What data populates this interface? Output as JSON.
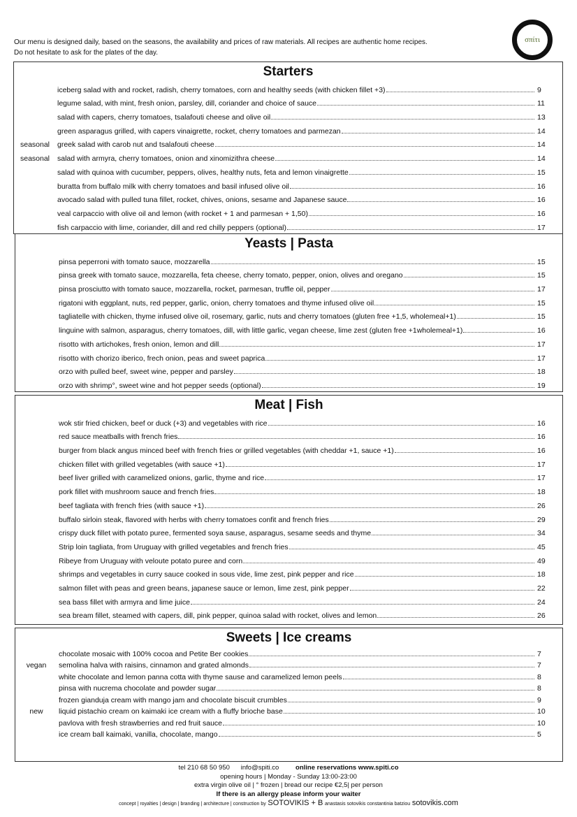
{
  "intro": [
    "Our menu is designed daily, based on the seasons, the availability and prices of raw materials. All recipes are authentic home recipes.",
    "Do not hesitate to ask for the plates of the day."
  ],
  "logo": "σπίτι",
  "sections": [
    {
      "title": "Starters",
      "items": [
        {
          "tag": "",
          "name": "iceberg salad with and rocket, radish, cherry tomatoes, corn and healthy seeds (with chicken fillet +3)",
          "price": "9"
        },
        {
          "tag": "",
          "name": "legume salad, with mint, fresh onion, parsley, dill, coriander and choice of sauce",
          "price": "11"
        },
        {
          "tag": "",
          "name": "salad with capers, cherry tomatoes, tsalafouti cheese and olive oil",
          "price": "13"
        },
        {
          "tag": "",
          "name": "green asparagus grilled, with capers vinaigrette, rocket, cherry tomatoes and parmezan",
          "price": "14"
        },
        {
          "tag": "seasonal",
          "name": "greek salad with carob nut and tsalafouti cheese",
          "price": "14"
        },
        {
          "tag": "seasonal",
          "name": "salad with armyra, cherry tomatoes, onion and xinomizithra cheese",
          "price": "14"
        },
        {
          "tag": "",
          "name": "salad with quinoa with cucumber, peppers, olives, healthy nuts, feta and lemon vinaigrette",
          "price": "15"
        },
        {
          "tag": "",
          "name": "buratta from buffalo milk with cherry tomatoes and basil infused olive oil",
          "price": "16"
        },
        {
          "tag": "",
          "name": "avocado salad with pulled tuna fillet, rocket, chives, onions, sesame and Japanese sauce",
          "price": "16"
        },
        {
          "tag": "",
          "name": "veal carpaccio with olive oil and lemon (with rocket + 1 and parmesan + 1,50)",
          "price": "16"
        },
        {
          "tag": "",
          "name": "fish carpaccio with lime, coriander, dill and red chilly peppers (optional)",
          "price": "17"
        }
      ]
    },
    {
      "title": "Yeasts | Pasta",
      "items": [
        {
          "tag": "",
          "name": "pinsa peperroni with tomato sauce, mozzarella",
          "price": "15"
        },
        {
          "tag": "",
          "name": "pinsa greek with tomato sauce, mozzarella, feta cheese, cherry tomato, pepper, onion, olives and oregano",
          "price": "15"
        },
        {
          "tag": "",
          "name": "pinsa prosciutto with tomato sauce, mozzarella, rocket, parmesan, truffle oil, pepper",
          "price": "17"
        },
        {
          "tag": "",
          "name": "rigatoni with eggplant, nuts, red pepper, garlic, onion, cherry tomatoes and thyme infused olive oil",
          "price": "15"
        },
        {
          "tag": "",
          "name": "tagliatelle with chicken, thyme infused olive oil, rosemary, garlic, nuts and cherry tomatoes (gluten free +1,5, wholemeal+1)",
          "price": "15"
        },
        {
          "tag": "",
          "name": "linguine with salmon, asparagus, cherry tomatoes, dill, with little garlic, vegan cheese, lime zest (gluten free +1wholemeal+1)",
          "price": "16"
        },
        {
          "tag": "",
          "name": "risotto with artichokes, fresh onion, lemon and dill",
          "price": "17"
        },
        {
          "tag": "",
          "name": "risotto with chorizo iberico, frech onion, peas and sweet paprica",
          "price": "17"
        },
        {
          "tag": "",
          "name": "orzo with pulled beef, sweet wine, pepper and parsley",
          "price": "18"
        },
        {
          "tag": "",
          "name": "orzo with shrimp°, sweet wine and hot pepper seeds (optional)",
          "price": "19"
        }
      ]
    },
    {
      "title": "Meat | Fish",
      "items": [
        {
          "tag": "",
          "name": "wok stir fried chicken, beef or duck (+3) and vegetables with rice",
          "price": "16"
        },
        {
          "tag": "",
          "name": "red sauce meatballs with french fries",
          "price": "16"
        },
        {
          "tag": "",
          "name": "burger from black angus minced beef with french fries or grilled vegetables (with cheddar +1, sauce +1)",
          "price": "16"
        },
        {
          "tag": "",
          "name": "chicken fillet with grilled vegetables (with sauce +1)",
          "price": "17"
        },
        {
          "tag": "",
          "name": "beef liver grilled with caramelized onions, garlic, thyme and rice",
          "price": "17"
        },
        {
          "tag": "",
          "name": "pork fillet with mushroom sauce and french fries",
          "price": "18"
        },
        {
          "tag": "",
          "name": "beef tagliata with french fries (with sauce +1)",
          "price": "26"
        },
        {
          "tag": "",
          "name": "buffalo sirloin steak, flavored with herbs with cherry tomatoes confit and french fries",
          "price": "29"
        },
        {
          "tag": "",
          "name": "crispy duck fillet with potato puree, fermented soya sause, asparagus, sesame seeds and thyme",
          "price": "34"
        },
        {
          "tag": "",
          "name": "Strip loin tagliata, from Uruguay with grilled vegetables and french fries",
          "price": "45"
        },
        {
          "tag": "",
          "name": "Ribeye from Uruguay with veloute potato puree and corn",
          "price": "49"
        },
        {
          "tag": "",
          "name": "shrimps and vegetables in curry sauce cooked in sous vide, lime zest, pink pepper and rice",
          "price": "18"
        },
        {
          "tag": "",
          "name": "salmon fillet with peas and green beans, japanese sauce or lemon, lime zest, pink pepper",
          "price": "22"
        },
        {
          "tag": "",
          "name": "sea bass fillet with armyra and lime juice",
          "price": "24"
        },
        {
          "tag": "",
          "name": "sea bream fillet, steamed with capers, dill, pink pepper, quinoa salad with rocket, olives and lemon",
          "price": "26"
        }
      ]
    },
    {
      "title": "Sweets | Ice creams",
      "items": [
        {
          "tag": "",
          "name": "chocolate mosaic with 100% cocoa and Petite Ber cookies",
          "price": "7"
        },
        {
          "tag": "vegan",
          "name": "semolina halva with raisins, cinnamon and grated almonds",
          "price": "7"
        },
        {
          "tag": "",
          "name": "white chocolate and lemon panna cotta with thyme sause and caramelized lemon peels",
          "price": "8"
        },
        {
          "tag": "",
          "name": "pinsa with nucrema chocolate and powder sugar",
          "price": "8"
        },
        {
          "tag": "",
          "name": "frozen gianduja cream with mango jam and chocolate biscuit crumbles",
          "price": "9"
        },
        {
          "tag": "new",
          "name": "liquid pistachio cream on kaimaki ice cream with a fluffy brioche base",
          "price": "10"
        },
        {
          "tag": "",
          "name": "pavlova with fresh strawberries and red fruit sauce",
          "price": "10"
        },
        {
          "tag": "",
          "name": "ice cream ball kaimaki, vanilla, chocolate, mango",
          "price": "5"
        }
      ]
    }
  ],
  "footer": {
    "tel": "tel 210 68 50 950",
    "email": "info@spiti.co",
    "reservations": "online reservations  www.spiti.co",
    "hours": "opening hours | Monday - Sunday 13:00-23:00",
    "notes": "extra virgin olive oil | ° frozen | bread our recipe €2,5| per person",
    "allergy": "If there is an allergy please inform your waiter",
    "credits": "concept | royalties | design | branding | architecture | construction by",
    "studio": "SOTOVIKIS + B",
    "names": "anastasis sotovikis constantinia batziou",
    "site": "sotovikis.com"
  }
}
